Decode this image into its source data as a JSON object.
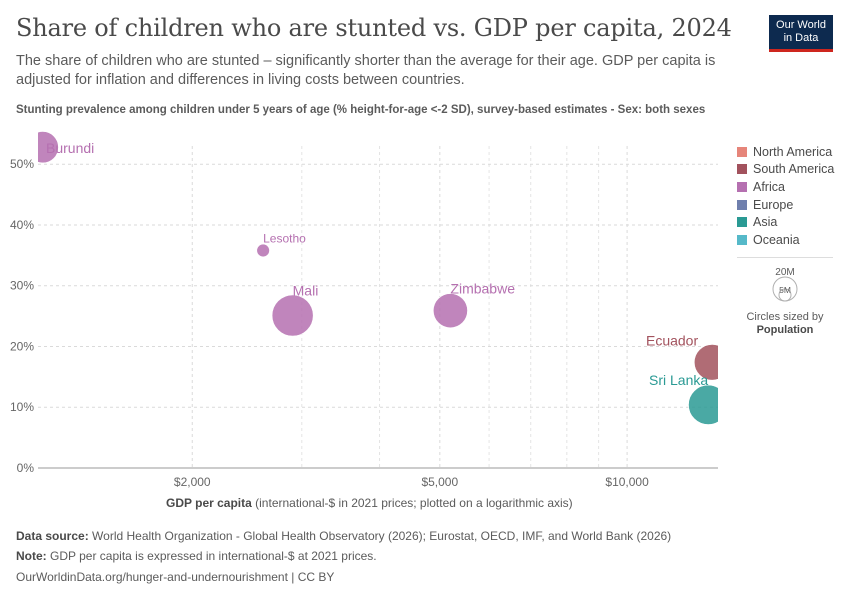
{
  "header": {
    "title": "Share of children who are stunted vs. GDP per capita, 2024",
    "subtitle": "The share of children who are stunted – significantly shorter than the average for their age. GDP per capita is adjusted for inflation and differences in living costs between countries.",
    "logo_line1": "Our World",
    "logo_line2": "in Data"
  },
  "chart_data": {
    "type": "scatter",
    "title": "Share of children who are stunted vs. GDP per capita, 2024",
    "ylabel": "Stunting prevalence among children under 5 years of age (% height-for-age <-2 SD), survey-based estimates - Sex: both sexes",
    "xlabel_bold": "GDP per capita",
    "xlabel_rest": " (international-$ in 2021 prices; plotted on a logarithmic axis)",
    "x_scale": "log",
    "xlim": [
      1130,
      14000
    ],
    "ylim": [
      0,
      53
    ],
    "x_ticks": [
      {
        "value": 2000,
        "label": "$2,000"
      },
      {
        "value": 5000,
        "label": "$5,000"
      },
      {
        "value": 10000,
        "label": "$10,000"
      }
    ],
    "x_minor_gridlines": [
      3000,
      4000,
      6000,
      7000,
      8000,
      9000
    ],
    "y_ticks": [
      {
        "value": 0,
        "label": "0%"
      },
      {
        "value": 10,
        "label": "10%"
      },
      {
        "value": 20,
        "label": "20%"
      },
      {
        "value": 30,
        "label": "30%"
      },
      {
        "value": 40,
        "label": "40%"
      },
      {
        "value": 50,
        "label": "50%"
      }
    ],
    "grid": true,
    "legend_position": "right",
    "regions": [
      {
        "name": "North America",
        "color": "#e6857a"
      },
      {
        "name": "South America",
        "color": "#a2525d"
      },
      {
        "name": "Africa",
        "color": "#b570b0"
      },
      {
        "name": "Europe",
        "color": "#6f7fad"
      },
      {
        "name": "Asia",
        "color": "#2a9a94"
      },
      {
        "name": "Oceania",
        "color": "#56b9c9"
      }
    ],
    "points": [
      {
        "label": "Burundi",
        "x": 1150,
        "y": 52.8,
        "population": 14000000,
        "region": "Africa",
        "color": "#b570b0"
      },
      {
        "label": "Lesotho",
        "x": 2600,
        "y": 35.8,
        "population": 2300000,
        "region": "Africa",
        "color": "#b570b0"
      },
      {
        "label": "Mali",
        "x": 2900,
        "y": 25.1,
        "population": 24000000,
        "region": "Africa",
        "color": "#b570b0"
      },
      {
        "label": "Zimbabwe",
        "x": 5200,
        "y": 25.9,
        "population": 16600000,
        "region": "Africa",
        "color": "#b570b0"
      },
      {
        "label": "Ecuador",
        "x": 13700,
        "y": 17.4,
        "population": 18100000,
        "region": "South America",
        "color": "#a2525d"
      },
      {
        "label": "Sri Lanka",
        "x": 13500,
        "y": 10.4,
        "population": 22000000,
        "region": "Asia",
        "color": "#2a9a94"
      }
    ],
    "size_legend": {
      "large_label": "20M",
      "small_label": "5M",
      "caption_line1": "Circles sized by",
      "caption_line2": "Population"
    }
  },
  "footer": {
    "source_label": "Data source:",
    "source_text": " World Health Organization - Global Health Observatory (2026); Eurostat, OECD, IMF, and World Bank (2026)",
    "note_label": "Note:",
    "note_text": " GDP per capita is expressed in international-$ at 2021 prices.",
    "url": "OurWorldinData.org/hunger-and-undernourishment | CC BY"
  }
}
